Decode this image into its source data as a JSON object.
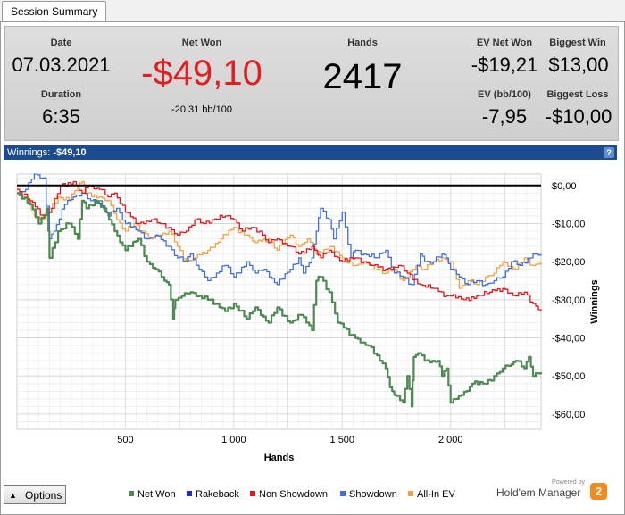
{
  "tabs": [
    {
      "label": "Session Summary"
    }
  ],
  "summary": {
    "date_label": "Date",
    "date_value": "07.03.2021",
    "duration_label": "Duration",
    "duration_value": "6:35",
    "net_won_label": "Net Won",
    "net_won_value": "-$49,10",
    "net_won_sub": "-20,31 bb/100",
    "hands_label": "Hands",
    "hands_value": "2417",
    "ev_net_won_label": "EV Net Won",
    "ev_net_won_value": "-$19,21",
    "ev_bb_label": "EV (bb/100)",
    "ev_bb_value": "-7,95",
    "biggest_win_label": "Biggest Win",
    "biggest_win_value": "$13,00",
    "biggest_loss_label": "Biggest Loss",
    "biggest_loss_value": "-$10,00",
    "net_won_color": "#e02020"
  },
  "winnings_bar": {
    "label": "Winnings:",
    "value": "-$49,10",
    "help_icon": "help-icon",
    "bar_color": "#1c4c8f"
  },
  "options_button": {
    "label": "Options",
    "icon": "triangle-up-icon"
  },
  "legend": [
    {
      "name": "Net Won",
      "color": "#4e8a52"
    },
    {
      "name": "Rakeback",
      "color": "#1e2fc9"
    },
    {
      "name": "Non Showdown",
      "color": "#e8141c"
    },
    {
      "name": "Showdown",
      "color": "#3c6fe6"
    },
    {
      "name": "All-In EV",
      "color": "#f5a040"
    }
  ],
  "branding": {
    "powered_by": "Powered by",
    "name": "Hold'em Manager",
    "logo_text": "2",
    "logo_color": "#f28a1e"
  },
  "chart_data": {
    "type": "line",
    "xlabel": "Hands",
    "ylabel": "Winnings",
    "xlim": [
      0,
      2417
    ],
    "ylim": [
      -64,
      3
    ],
    "x_ticks": [
      500,
      1000,
      1500,
      2000
    ],
    "x_tick_labels": [
      "500",
      "1 000",
      "1 500",
      "2 000"
    ],
    "y_ticks": [
      0,
      -10,
      -20,
      -30,
      -40,
      -50,
      -60
    ],
    "y_tick_labels": [
      "$0,00",
      "-$10,00",
      "-$20,00",
      "-$30,00",
      "-$40,00",
      "-$50,00",
      "-$60,00"
    ],
    "grid": true,
    "legend_position": "bottom",
    "zero_line": true,
    "series": [
      {
        "name": "Net Won",
        "color": "#4e8a52",
        "x": [
          0,
          60,
          100,
          140,
          150,
          190,
          240,
          280,
          300,
          320,
          360,
          400,
          450,
          500,
          560,
          600,
          640,
          680,
          700,
          720,
          730,
          760,
          800,
          880,
          960,
          1000,
          1060,
          1100,
          1160,
          1200,
          1260,
          1310,
          1360,
          1380,
          1400,
          1440,
          1480,
          1560,
          1620,
          1700,
          1720,
          1740,
          1780,
          1800,
          1820,
          1830,
          1850,
          1880,
          1940,
          1960,
          1980,
          2000,
          2050,
          2100,
          2160,
          2200,
          2240,
          2280,
          2300,
          2340,
          2360,
          2380,
          2417
        ],
        "y": [
          -2,
          -5,
          -10,
          -6,
          -19,
          -12,
          -10,
          -14,
          -4,
          -6,
          -4,
          -6,
          -12,
          -17,
          -14,
          -20,
          -22,
          -25,
          -26,
          -35,
          -30,
          -29,
          -28,
          -30,
          -33,
          -31,
          -35,
          -32,
          -36,
          -32,
          -36,
          -34,
          -38,
          -25,
          -24,
          -28,
          -36,
          -40,
          -42,
          -48,
          -53,
          -55,
          -57,
          -50,
          -58,
          -45,
          -44,
          -46,
          -46,
          -50,
          -48,
          -57,
          -55,
          -52,
          -52,
          -50,
          -48,
          -47,
          -46,
          -48,
          -45,
          -50,
          -49
        ]
      },
      {
        "name": "Rakeback",
        "color": "#1e2fc9",
        "x": [],
        "y": []
      },
      {
        "name": "Non Showdown",
        "color": "#e8141c",
        "x": [
          0,
          60,
          120,
          160,
          200,
          260,
          300,
          330,
          380,
          420,
          450,
          500,
          560,
          620,
          660,
          700,
          740,
          780,
          820,
          860,
          900,
          960,
          1000,
          1040,
          1080,
          1120,
          1160,
          1200,
          1260,
          1300,
          1360,
          1400,
          1440,
          1500,
          1560,
          1600,
          1640,
          1700,
          1760,
          1800,
          1860,
          1920,
          1980,
          2000,
          2060,
          2120,
          2180,
          2240,
          2300,
          2340,
          2380,
          2417
        ],
        "y": [
          -1,
          -4,
          -8,
          -6,
          0,
          1,
          -2,
          0,
          -1,
          -3,
          -2,
          -7,
          -10,
          -9,
          -10,
          -11,
          -13,
          -12,
          -9,
          -10,
          -9,
          -8,
          -9,
          -12,
          -11,
          -12,
          -15,
          -14,
          -16,
          -18,
          -16,
          -19,
          -17,
          -20,
          -19,
          -20,
          -21,
          -22,
          -21,
          -23,
          -26,
          -27,
          -29,
          -29,
          -30,
          -29,
          -28,
          -27,
          -29,
          -28,
          -31,
          -33
        ]
      },
      {
        "name": "Showdown",
        "color": "#3c6fe6",
        "x": [
          0,
          40,
          80,
          120,
          150,
          170,
          220,
          260,
          300,
          340,
          380,
          420,
          460,
          500,
          560,
          600,
          640,
          700,
          740,
          780,
          800,
          840,
          880,
          960,
          1000,
          1060,
          1100,
          1140,
          1200,
          1260,
          1300,
          1320,
          1360,
          1380,
          1400,
          1440,
          1460,
          1500,
          1540,
          1560,
          1600,
          1660,
          1700,
          1740,
          1780,
          1820,
          1860,
          1880,
          1920,
          1960,
          1980,
          2000,
          2040,
          2080,
          2120,
          2160,
          2200,
          2240,
          2280,
          2320,
          2380,
          2417
        ],
        "y": [
          -2,
          -1,
          3,
          2,
          -14,
          -12,
          -5,
          -3,
          -2,
          -4,
          -4,
          -8,
          -6,
          -10,
          -12,
          -14,
          -13,
          -16,
          -19,
          -20,
          -18,
          -22,
          -25,
          -21,
          -24,
          -20,
          -23,
          -22,
          -26,
          -22,
          -19,
          -23,
          -19,
          -12,
          -6,
          -9,
          -14,
          -7,
          -19,
          -17,
          -18,
          -19,
          -17,
          -23,
          -24,
          -26,
          -18,
          -20,
          -20,
          -18,
          -19,
          -22,
          -24,
          -26,
          -25,
          -26,
          -25,
          -24,
          -20,
          -21,
          -18,
          -18
        ]
      },
      {
        "name": "All-In EV",
        "color": "#f5a040",
        "x": [
          0,
          40,
          80,
          120,
          150,
          190,
          240,
          280,
          300,
          320,
          380,
          420,
          460,
          500,
          540,
          580,
          620,
          660,
          700,
          740,
          780,
          820,
          880,
          940,
          1000,
          1060,
          1100,
          1160,
          1200,
          1260,
          1300,
          1340,
          1380,
          1440,
          1500,
          1560,
          1600,
          1660,
          1700,
          1740,
          1780,
          1800,
          1840,
          1880,
          1920,
          1960,
          2000,
          2040,
          2080,
          2120,
          2160,
          2200,
          2240,
          2300,
          2340,
          2380,
          2417
        ],
        "y": [
          -2,
          -3,
          -8,
          -9,
          -6,
          -3,
          -4,
          0,
          1,
          -2,
          -3,
          -4,
          -9,
          -12,
          -10,
          -12,
          -14,
          -13,
          -12,
          -16,
          -20,
          -19,
          -17,
          -14,
          -11,
          -13,
          -15,
          -14,
          -17,
          -13,
          -16,
          -14,
          -18,
          -16,
          -19,
          -21,
          -20,
          -22,
          -23,
          -22,
          -25,
          -24,
          -21,
          -22,
          -20,
          -19,
          -20,
          -27,
          -25,
          -26,
          -24,
          -23,
          -20,
          -22,
          -19,
          -21,
          -20
        ]
      }
    ]
  }
}
